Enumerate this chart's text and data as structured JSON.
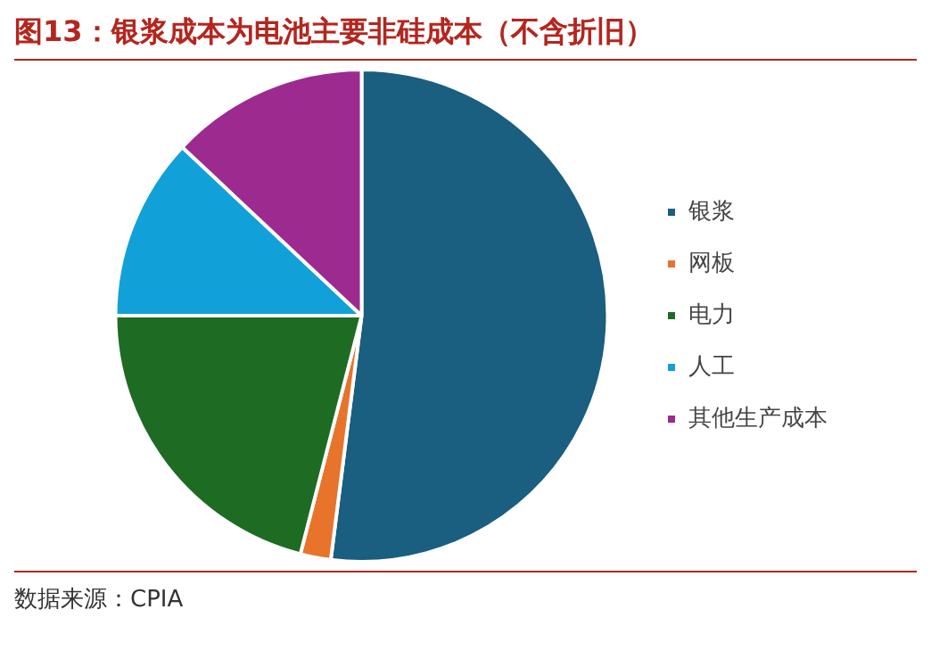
{
  "chart_data": {
    "type": "pie",
    "title": "图13：银浆成本为电池主要非硅成本（不含折旧）",
    "categories": [
      "银浆",
      "网板",
      "电力",
      "人工",
      "其他生产成本"
    ],
    "values": [
      52,
      2,
      21,
      12,
      13
    ],
    "colors": [
      "#1a5e80",
      "#e8732a",
      "#1e6b24",
      "#12a0d8",
      "#9c2a8f"
    ],
    "legend": "right",
    "annotations": [
      "数据来源：CPIA"
    ]
  }
}
